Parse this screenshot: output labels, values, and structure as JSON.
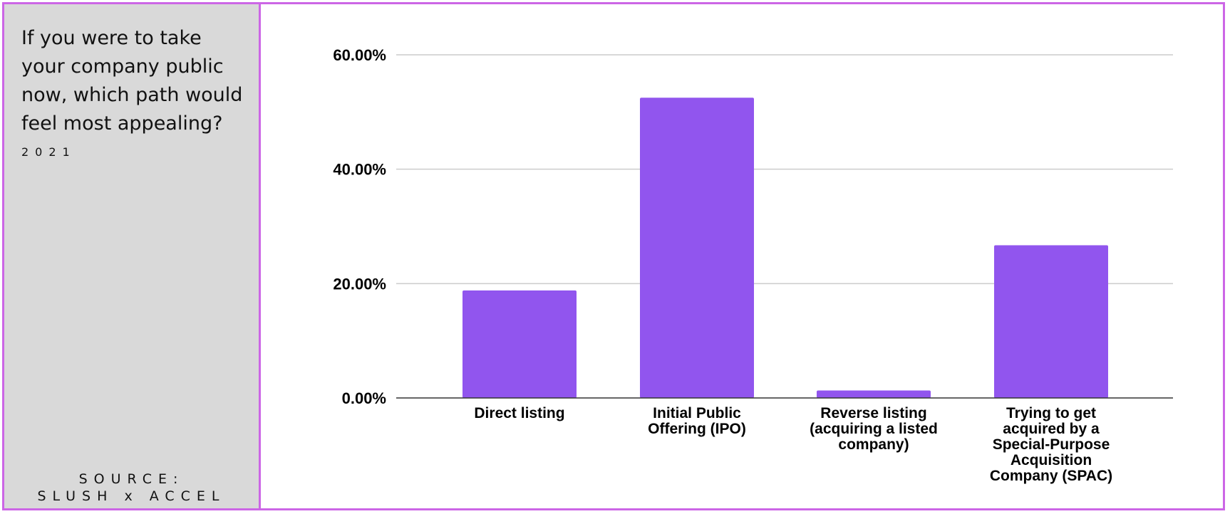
{
  "panel": {
    "question": "If you were to take your company public now, which path would feel most appealing?",
    "year": "2021",
    "source_line1": "SOURCE:",
    "source_line2": "SLUSH x ACCEL"
  },
  "colors": {
    "bar": "#9155ee",
    "frame": "#cc66e6",
    "panel_bg": "#d9d9d9",
    "grid": "#cccccc"
  },
  "chart_data": {
    "type": "bar",
    "categories": [
      [
        "Direct listing"
      ],
      [
        "Initial Public",
        "Offering (IPO)"
      ],
      [
        "Reverse listing",
        "(acquiring a listed",
        "company)"
      ],
      [
        "Trying to get",
        "acquired by a",
        "Special-Purpose",
        "Acquisition",
        "Company (SPAC)"
      ]
    ],
    "values": [
      18.8,
      52.5,
      1.3,
      26.7
    ],
    "yticks": [
      "0.00%",
      "20.00%",
      "40.00%",
      "60.00%"
    ],
    "ylim": [
      0,
      60
    ],
    "grid": true,
    "title": "",
    "xlabel": "",
    "ylabel": ""
  }
}
